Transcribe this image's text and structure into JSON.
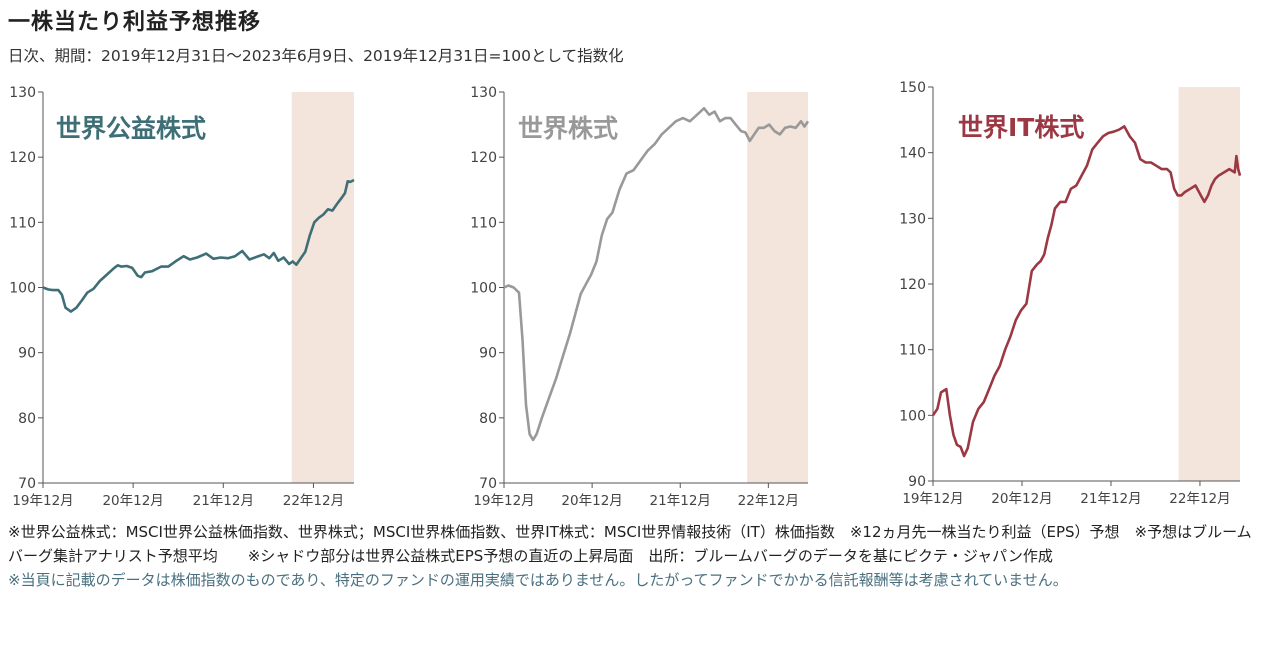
{
  "title": "一株当たり利益予想推移",
  "subtitle": "日次、期間：2019年12月31日～2023年6月9日、2019年12月31日=100として指数化",
  "footnote": "※世界公益株式：MSCI世界公益株価指数、世界株式；MSCI世界株価指数、世界IT株式：MSCI世界情報技術（IT）株価指数　※12ヵ月先一株当たり利益（EPS）予想　※予想はブルームバーグ集計アナリスト予想平均　　※シャドウ部分は世界公益株式EPS予想の直近の上昇局面　出所：ブルームバーグのデータを基にピクテ・ジャパン作成",
  "disclaimer": "※当頁に記載のデータは株価指数のものであり、特定のファンドの運用実績ではありません。したがってファンドでかかる信託報酬等は考慮されていません。",
  "colors": {
    "shade": "#f3e4dc",
    "axis": "#555555",
    "tick_text": "#444444"
  },
  "chart_data": [
    {
      "type": "line",
      "title": "世界公益株式",
      "color": "#3f6f76",
      "xlim": [
        2019.99,
        2023.44
      ],
      "ylim": [
        70,
        130
      ],
      "yticks": [
        70,
        80,
        90,
        100,
        110,
        120,
        130
      ],
      "xticks": [
        {
          "x": 2019.99,
          "label": "19年12月"
        },
        {
          "x": 2020.99,
          "label": "20年12月"
        },
        {
          "x": 2021.99,
          "label": "21年12月"
        },
        {
          "x": 2022.99,
          "label": "22年12月"
        }
      ],
      "shade": [
        2022.75,
        2023.44
      ],
      "series": [
        {
          "x": [
            2019.99,
            2020.05,
            2020.1,
            2020.16,
            2020.2,
            2020.24,
            2020.3,
            2020.36,
            2020.42,
            2020.48,
            2020.55,
            2020.62,
            2020.7,
            2020.78,
            2020.82,
            2020.86,
            2020.92,
            2020.98,
            2021.04,
            2021.08,
            2021.12,
            2021.2,
            2021.3,
            2021.38,
            2021.46,
            2021.55,
            2021.62,
            2021.7,
            2021.8,
            2021.88,
            2021.96,
            2022.04,
            2022.12,
            2022.2,
            2022.28,
            2022.36,
            2022.44,
            2022.5,
            2022.55,
            2022.6,
            2022.66,
            2022.72,
            2022.76,
            2022.8,
            2022.85,
            2022.9,
            2022.95,
            2023.0,
            2023.05,
            2023.1,
            2023.15,
            2023.2,
            2023.25,
            2023.3,
            2023.34,
            2023.37,
            2023.4,
            2023.44
          ],
          "y": [
            100,
            99.7,
            99.6,
            99.6,
            98.9,
            96.9,
            96.3,
            96.9,
            98.0,
            99.2,
            99.8,
            101.0,
            102.0,
            103.0,
            103.4,
            103.2,
            103.3,
            103.0,
            101.8,
            101.6,
            102.3,
            102.5,
            103.2,
            103.2,
            104.0,
            104.8,
            104.3,
            104.6,
            105.2,
            104.4,
            104.6,
            104.5,
            104.8,
            105.6,
            104.3,
            104.7,
            105.1,
            104.5,
            105.3,
            104.1,
            104.6,
            103.6,
            104.0,
            103.5,
            104.5,
            105.5,
            108.0,
            110.0,
            110.7,
            111.2,
            112.0,
            111.8,
            112.8,
            113.7,
            114.5,
            116.3,
            116.2,
            116.5
          ]
        }
      ]
    },
    {
      "type": "line",
      "title": "世界株式",
      "color": "#999999",
      "xlim": [
        2019.99,
        2023.44
      ],
      "ylim": [
        70,
        130
      ],
      "yticks": [
        70,
        80,
        90,
        100,
        110,
        120,
        130
      ],
      "xticks": [
        {
          "x": 2019.99,
          "label": "19年12月"
        },
        {
          "x": 2020.99,
          "label": "20年12月"
        },
        {
          "x": 2021.99,
          "label": "21年12月"
        },
        {
          "x": 2022.99,
          "label": "22年12月"
        }
      ],
      "shade": [
        2022.75,
        2023.44
      ],
      "series": [
        {
          "x": [
            2019.99,
            2020.04,
            2020.1,
            2020.16,
            2020.2,
            2020.24,
            2020.28,
            2020.32,
            2020.36,
            2020.42,
            2020.5,
            2020.58,
            2020.66,
            2020.74,
            2020.8,
            2020.86,
            2020.92,
            2020.98,
            2021.04,
            2021.1,
            2021.16,
            2021.22,
            2021.3,
            2021.38,
            2021.46,
            2021.54,
            2021.62,
            2021.7,
            2021.78,
            2021.86,
            2021.94,
            2022.02,
            2022.1,
            2022.18,
            2022.26,
            2022.32,
            2022.38,
            2022.44,
            2022.5,
            2022.56,
            2022.62,
            2022.68,
            2022.73,
            2022.78,
            2022.83,
            2022.88,
            2022.94,
            2023.0,
            2023.06,
            2023.12,
            2023.18,
            2023.24,
            2023.3,
            2023.36,
            2023.4,
            2023.44
          ],
          "y": [
            100,
            100.3,
            100,
            99.2,
            92,
            82,
            77.5,
            76.6,
            77.5,
            80,
            83,
            86,
            89.5,
            93,
            96,
            99,
            100.5,
            102,
            104,
            108,
            110.5,
            111.5,
            115,
            117.5,
            118,
            119.5,
            121,
            122,
            123.5,
            124.5,
            125.5,
            126,
            125.5,
            126.5,
            127.5,
            126.5,
            127,
            125.5,
            126,
            126,
            125,
            124,
            123.8,
            122.5,
            123.5,
            124.5,
            124.5,
            125,
            124,
            123.5,
            124.5,
            124.7,
            124.5,
            125.5,
            124.7,
            125.5
          ]
        }
      ]
    },
    {
      "type": "line",
      "title": "世界IT株式",
      "color": "#9c3843",
      "xlim": [
        2019.99,
        2023.44
      ],
      "ylim": [
        90,
        150
      ],
      "yticks": [
        90,
        100,
        110,
        120,
        130,
        140,
        150
      ],
      "xticks": [
        {
          "x": 2019.99,
          "label": "19年12月"
        },
        {
          "x": 2020.99,
          "label": "20年12月"
        },
        {
          "x": 2021.99,
          "label": "21年12月"
        },
        {
          "x": 2022.99,
          "label": "22年12月"
        }
      ],
      "shade": [
        2022.75,
        2023.44
      ],
      "series": [
        {
          "x": [
            2019.99,
            2020.04,
            2020.08,
            2020.14,
            2020.18,
            2020.22,
            2020.26,
            2020.3,
            2020.34,
            2020.38,
            2020.44,
            2020.5,
            2020.56,
            2020.62,
            2020.68,
            2020.74,
            2020.8,
            2020.86,
            2020.92,
            2020.98,
            2021.04,
            2021.1,
            2021.16,
            2021.2,
            2021.24,
            2021.28,
            2021.32,
            2021.36,
            2021.42,
            2021.48,
            2021.54,
            2021.6,
            2021.66,
            2021.72,
            2021.78,
            2021.84,
            2021.9,
            2021.96,
            2022.02,
            2022.08,
            2022.14,
            2022.2,
            2022.26,
            2022.32,
            2022.38,
            2022.44,
            2022.5,
            2022.56,
            2022.62,
            2022.66,
            2022.7,
            2022.74,
            2022.78,
            2022.82,
            2022.88,
            2022.94,
            2023.0,
            2023.04,
            2023.08,
            2023.12,
            2023.16,
            2023.2,
            2023.26,
            2023.32,
            2023.38,
            2023.4,
            2023.42,
            2023.44
          ],
          "y": [
            100,
            101,
            103.5,
            104,
            100,
            97,
            95.5,
            95.2,
            93.8,
            95,
            99,
            101,
            102,
            104,
            106,
            107.5,
            110,
            112,
            114.5,
            116,
            117,
            122,
            123,
            123.5,
            124.5,
            127,
            129,
            131.5,
            132.5,
            132.5,
            134.5,
            135,
            136.5,
            138,
            140.5,
            141.5,
            142.5,
            143,
            143.2,
            143.5,
            144,
            142.5,
            141.5,
            139,
            138.5,
            138.5,
            138,
            137.5,
            137.5,
            137,
            134.5,
            133.5,
            133.5,
            134,
            134.5,
            135,
            133.5,
            132.5,
            133.5,
            135,
            136,
            136.5,
            137,
            137.5,
            137,
            139.5,
            137.5,
            136.5
          ]
        }
      ]
    }
  ]
}
